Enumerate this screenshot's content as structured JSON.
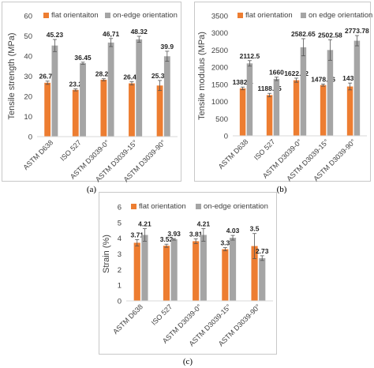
{
  "colors": {
    "flat": "#ED7D31",
    "edge": "#A5A5A5",
    "axis_text": "#404040",
    "grid": "#D9D9D9"
  },
  "chart_data": [
    {
      "type": "bar",
      "caption": "(a)",
      "ylabel": "Tensile strength (MPa)",
      "ylim": [
        0,
        60
      ],
      "yticks": [
        0,
        10,
        20,
        30,
        40,
        50,
        60
      ],
      "grid": false,
      "legend": "top",
      "categories": [
        "ASTM D638",
        "ISO 527",
        "ASTM D3039-0°",
        "ASTM D3039-15°",
        "ASTM D3039-90°"
      ],
      "series": [
        {
          "name": "flat orientaiton",
          "color": "#ED7D31",
          "values": [
            26.75,
            23.2,
            28.25,
            26.46,
            25.38
          ],
          "labels": [
            "26.75",
            "23.2",
            "28.25",
            "26.46",
            "25.38"
          ],
          "error": [
            0.8,
            0.5,
            0.5,
            0.8,
            2.5
          ]
        },
        {
          "name": "on-edge orientation",
          "color": "#A5A5A5",
          "values": [
            45.23,
            36.45,
            46.71,
            48.32,
            39.9
          ],
          "labels": [
            "45.23",
            "36.45",
            "46,71",
            "48.32",
            "39.9"
          ],
          "error": [
            3.0,
            0.5,
            2.0,
            1.5,
            2.5
          ]
        }
      ]
    },
    {
      "type": "bar",
      "caption": "(b)",
      "ylabel": "Tensile modulus (MPa)",
      "ylim": [
        0,
        3500
      ],
      "yticks": [
        0,
        500,
        1000,
        1500,
        2000,
        2500,
        3000,
        3500
      ],
      "grid": false,
      "legend": "top",
      "categories": [
        "ASTM D638",
        "ISO 527",
        "ASTM D3039-0°",
        "ASTM D3039-15°",
        "ASTM D3039-90°"
      ],
      "series": [
        {
          "name": "flat orientation",
          "color": "#ED7D31",
          "values": [
            1382.4,
            1188.35,
            1622.12,
            1478.56,
            1439
          ],
          "labels": [
            "1382.4",
            "1188.35",
            "1622.12",
            "1478.56",
            "1439"
          ],
          "error": [
            40,
            50,
            60,
            30,
            100
          ]
        },
        {
          "name": "on edge orientation",
          "color": "#A5A5A5",
          "values": [
            2112.5,
            1660,
            2582.65,
            2502.58,
            2773.78
          ],
          "labels": [
            "2112.5",
            "1660",
            "2582.65",
            "2502.58",
            "2773.78"
          ],
          "error": [
            80,
            50,
            250,
            300,
            150
          ]
        }
      ]
    },
    {
      "type": "bar",
      "caption": "(c)",
      "ylabel": "Strain (%)",
      "ylim": [
        0,
        6
      ],
      "yticks": [
        0,
        1,
        2,
        3,
        4,
        5,
        6
      ],
      "grid": false,
      "legend": "top",
      "categories": [
        "ASTM D638",
        "ISO 527",
        "ASTM D3039-0°",
        "ASTM D3039-15°",
        "ASTM D3039-90°"
      ],
      "series": [
        {
          "name": "flat orientation",
          "color": "#ED7D31",
          "values": [
            3.71,
            3.52,
            3.81,
            3.3,
            3.5
          ],
          "labels": [
            "3.71",
            "3.52",
            "3.81",
            "3.3",
            "3.5"
          ],
          "error": [
            0.2,
            0.1,
            0.15,
            0.1,
            0.8
          ]
        },
        {
          "name": "on-edge orientation",
          "color": "#A5A5A5",
          "values": [
            4.21,
            3.93,
            4.21,
            4.03,
            2.73
          ],
          "labels": [
            "4.21",
            "3.93",
            "4.21",
            "4.03",
            "2.73"
          ],
          "error": [
            0.4,
            0.05,
            0.4,
            0.15,
            0.15
          ]
        }
      ]
    }
  ]
}
